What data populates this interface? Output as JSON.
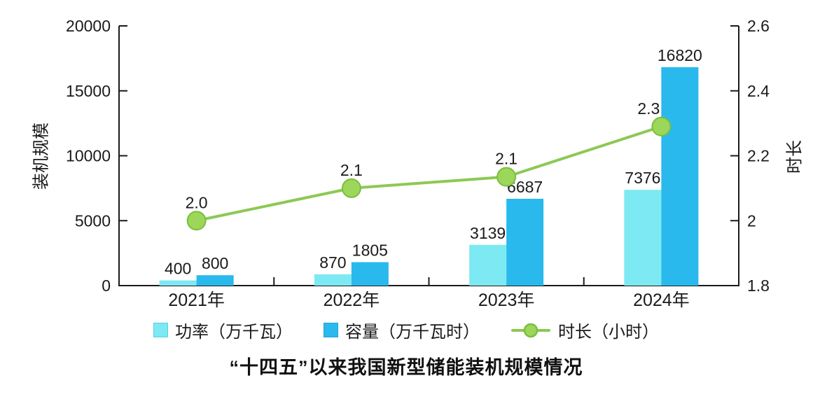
{
  "title": "“十四五”以来我国新型储能装机规模情况",
  "left_axis": {
    "title": "装机规模",
    "ticks": [
      "20000",
      "15000",
      "10000",
      "5000",
      "0"
    ]
  },
  "right_axis": {
    "title": "时长",
    "ticks": [
      "2.6",
      "2.4",
      "2.2",
      "2",
      "1.8"
    ]
  },
  "legend": {
    "items": [
      {
        "label": "功率（万千瓦）",
        "swatch": "square",
        "fill": "#7de9f2",
        "border": "#54d3e6"
      },
      {
        "label": "容量（万千瓦时）",
        "swatch": "square",
        "fill": "#29b9ec",
        "border": "#1ba5dc"
      },
      {
        "label": "时长（小时）",
        "swatch": "line",
        "line_color": "#8cc954",
        "marker_fill": "#9cd65b",
        "marker_border": "#7cbe3e"
      }
    ]
  },
  "chart_data": {
    "type": "bar+line",
    "categories": [
      "2021年",
      "2022年",
      "2023年",
      "2024年"
    ],
    "series": [
      {
        "key": "power",
        "name": "功率（万千瓦）",
        "type": "bar",
        "axis": "left",
        "color": "#7de9f2",
        "values": [
          400,
          870,
          3139,
          7376
        ],
        "labels": [
          "400",
          "870",
          "3139",
          "7376"
        ]
      },
      {
        "key": "capacity",
        "name": "容量（万千瓦时）",
        "type": "bar",
        "axis": "left",
        "color": "#29b9ec",
        "values": [
          800,
          1805,
          6687,
          16820
        ],
        "labels": [
          "800",
          "1805",
          "6687",
          "16820"
        ]
      },
      {
        "key": "duration",
        "name": "时长（小时）",
        "type": "line",
        "axis": "right",
        "color": "#8cc954",
        "marker_fill": "#9cd65b",
        "marker_border": "#7cbe3e",
        "values": [
          2.0,
          2.1,
          2.1,
          2.3
        ],
        "plot_values": [
          2.0,
          2.1,
          2.135,
          2.29
        ],
        "labels": [
          "2.0",
          "2.1",
          "2.1",
          "2.3"
        ],
        "label_dx": [
          0,
          0,
          0,
          -18
        ]
      }
    ],
    "left_ylim": [
      0,
      20000
    ],
    "right_ylim": [
      1.8,
      2.6
    ],
    "grid": false,
    "legend_position": "bottom",
    "axis_color": "#1a1a1a",
    "text_color": "#1a1a1a"
  }
}
